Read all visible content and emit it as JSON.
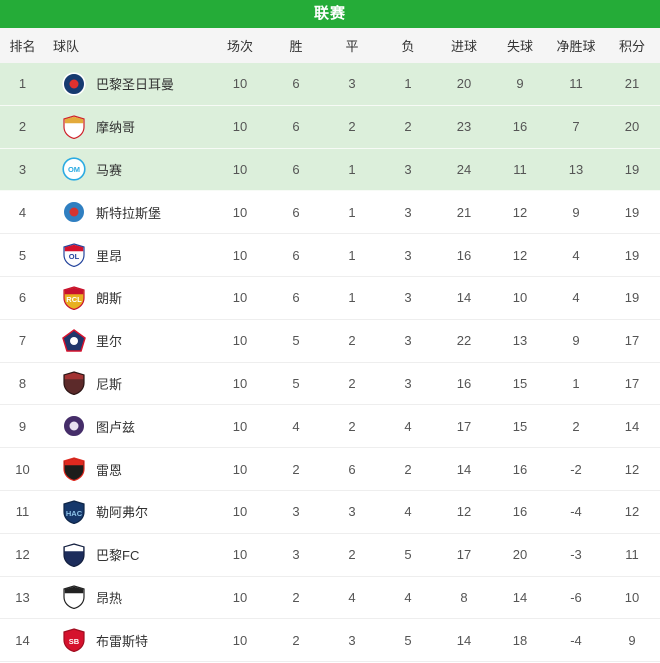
{
  "header": {
    "title": "联赛"
  },
  "table": {
    "columns": [
      "排名",
      "球队",
      "场次",
      "胜",
      "平",
      "负",
      "进球",
      "失球",
      "净胜球",
      "积分"
    ],
    "header_bar_color": "#25ac38",
    "highlight_row_color": "#dcefdb",
    "rows": [
      {
        "rank": "1",
        "team": "巴黎圣日耳曼",
        "played": "10",
        "win": "6",
        "draw": "3",
        "loss": "1",
        "gf": "20",
        "ga": "9",
        "gd": "11",
        "pts": "21",
        "hl": true,
        "logo": {
          "shape": "circle",
          "c1": "#163a70",
          "c2": "#ffffff",
          "c3": "#e0312e",
          "text": "",
          "tc": ""
        }
      },
      {
        "rank": "2",
        "team": "摩纳哥",
        "played": "10",
        "win": "6",
        "draw": "2",
        "loss": "2",
        "gf": "23",
        "ga": "16",
        "gd": "7",
        "pts": "20",
        "hl": true,
        "logo": {
          "shape": "shield",
          "c1": "#ffffff",
          "c2": "#cf2029",
          "c3": "#e3aa3b",
          "text": "",
          "tc": ""
        }
      },
      {
        "rank": "3",
        "team": "马赛",
        "played": "10",
        "win": "6",
        "draw": "1",
        "loss": "3",
        "gf": "24",
        "ga": "11",
        "gd": "13",
        "pts": "19",
        "hl": true,
        "logo": {
          "shape": "circle",
          "c1": "#ffffff",
          "c2": "#2babe2",
          "c3": "#2babe2",
          "text": "OM",
          "tc": "#2babe2"
        }
      },
      {
        "rank": "4",
        "team": "斯特拉斯堡",
        "played": "10",
        "win": "6",
        "draw": "1",
        "loss": "3",
        "gf": "21",
        "ga": "12",
        "gd": "9",
        "pts": "19",
        "hl": false,
        "logo": {
          "shape": "circle",
          "c1": "#2f7fc1",
          "c2": "#ffffff",
          "c3": "#d5332f",
          "text": "",
          "tc": ""
        }
      },
      {
        "rank": "5",
        "team": "里昂",
        "played": "10",
        "win": "6",
        "draw": "1",
        "loss": "3",
        "gf": "16",
        "ga": "12",
        "gd": "4",
        "pts": "19",
        "hl": false,
        "logo": {
          "shape": "shield",
          "c1": "#fdfdfd",
          "c2": "#24449c",
          "c3": "#d5122d",
          "text": "OL",
          "tc": "#24449c"
        }
      },
      {
        "rank": "6",
        "team": "朗斯",
        "played": "10",
        "win": "6",
        "draw": "1",
        "loss": "3",
        "gf": "14",
        "ga": "10",
        "gd": "4",
        "pts": "19",
        "hl": false,
        "logo": {
          "shape": "shield",
          "c1": "#e8b021",
          "c2": "#c8102e",
          "c3": "#c8102e",
          "text": "RCL",
          "tc": "#ffffff"
        }
      },
      {
        "rank": "7",
        "team": "里尔",
        "played": "10",
        "win": "5",
        "draw": "2",
        "loss": "3",
        "gf": "22",
        "ga": "13",
        "gd": "9",
        "pts": "17",
        "hl": false,
        "logo": {
          "shape": "pentagon",
          "c1": "#20366b",
          "c2": "#d5122d",
          "c3": "#ffffff",
          "text": "",
          "tc": ""
        }
      },
      {
        "rank": "8",
        "team": "尼斯",
        "played": "10",
        "win": "5",
        "draw": "2",
        "loss": "3",
        "gf": "16",
        "ga": "15",
        "gd": "1",
        "pts": "17",
        "hl": false,
        "logo": {
          "shape": "shield",
          "c1": "#5c2a2a",
          "c2": "#2b1515",
          "c3": "#a23333",
          "text": "",
          "tc": ""
        }
      },
      {
        "rank": "9",
        "team": "图卢兹",
        "played": "10",
        "win": "4",
        "draw": "2",
        "loss": "4",
        "gf": "17",
        "ga": "15",
        "gd": "2",
        "pts": "14",
        "hl": false,
        "logo": {
          "shape": "circle",
          "c1": "#452d69",
          "c2": "#ffffff",
          "c3": "#e8e2f0",
          "text": "",
          "tc": ""
        }
      },
      {
        "rank": "10",
        "team": "雷恩",
        "played": "10",
        "win": "2",
        "draw": "6",
        "loss": "2",
        "gf": "14",
        "ga": "16",
        "gd": "-2",
        "pts": "12",
        "hl": false,
        "logo": {
          "shape": "shield",
          "c1": "#1d1d1b",
          "c2": "#e0291f",
          "c3": "#e0291f",
          "text": "",
          "tc": ""
        }
      },
      {
        "rank": "11",
        "team": "勒阿弗尔",
        "played": "10",
        "win": "3",
        "draw": "3",
        "loss": "4",
        "gf": "12",
        "ga": "16",
        "gd": "-4",
        "pts": "12",
        "hl": false,
        "logo": {
          "shape": "shield",
          "c1": "#16386b",
          "c2": "#0e2547",
          "c3": "",
          "text": "HAC",
          "tc": "#8ec4ea"
        }
      },
      {
        "rank": "12",
        "team": "巴黎FC",
        "played": "10",
        "win": "3",
        "draw": "2",
        "loss": "5",
        "gf": "17",
        "ga": "20",
        "gd": "-3",
        "pts": "11",
        "hl": false,
        "logo": {
          "shape": "shield",
          "c1": "#1d2d5c",
          "c2": "#14203f",
          "c3": "#ffffff",
          "text": "",
          "tc": ""
        }
      },
      {
        "rank": "13",
        "team": "昂热",
        "played": "10",
        "win": "2",
        "draw": "4",
        "loss": "4",
        "gf": "8",
        "ga": "14",
        "gd": "-6",
        "pts": "10",
        "hl": false,
        "logo": {
          "shape": "shield",
          "c1": "#ffffff",
          "c2": "#222222",
          "c3": "#222222",
          "text": "",
          "tc": ""
        }
      },
      {
        "rank": "14",
        "team": "布雷斯特",
        "played": "10",
        "win": "2",
        "draw": "3",
        "loss": "5",
        "gf": "14",
        "ga": "18",
        "gd": "-4",
        "pts": "9",
        "hl": false,
        "logo": {
          "shape": "shield",
          "c1": "#d5122d",
          "c2": "#a00d20",
          "c3": "",
          "text": "SB",
          "tc": "#ffffff"
        }
      }
    ]
  }
}
